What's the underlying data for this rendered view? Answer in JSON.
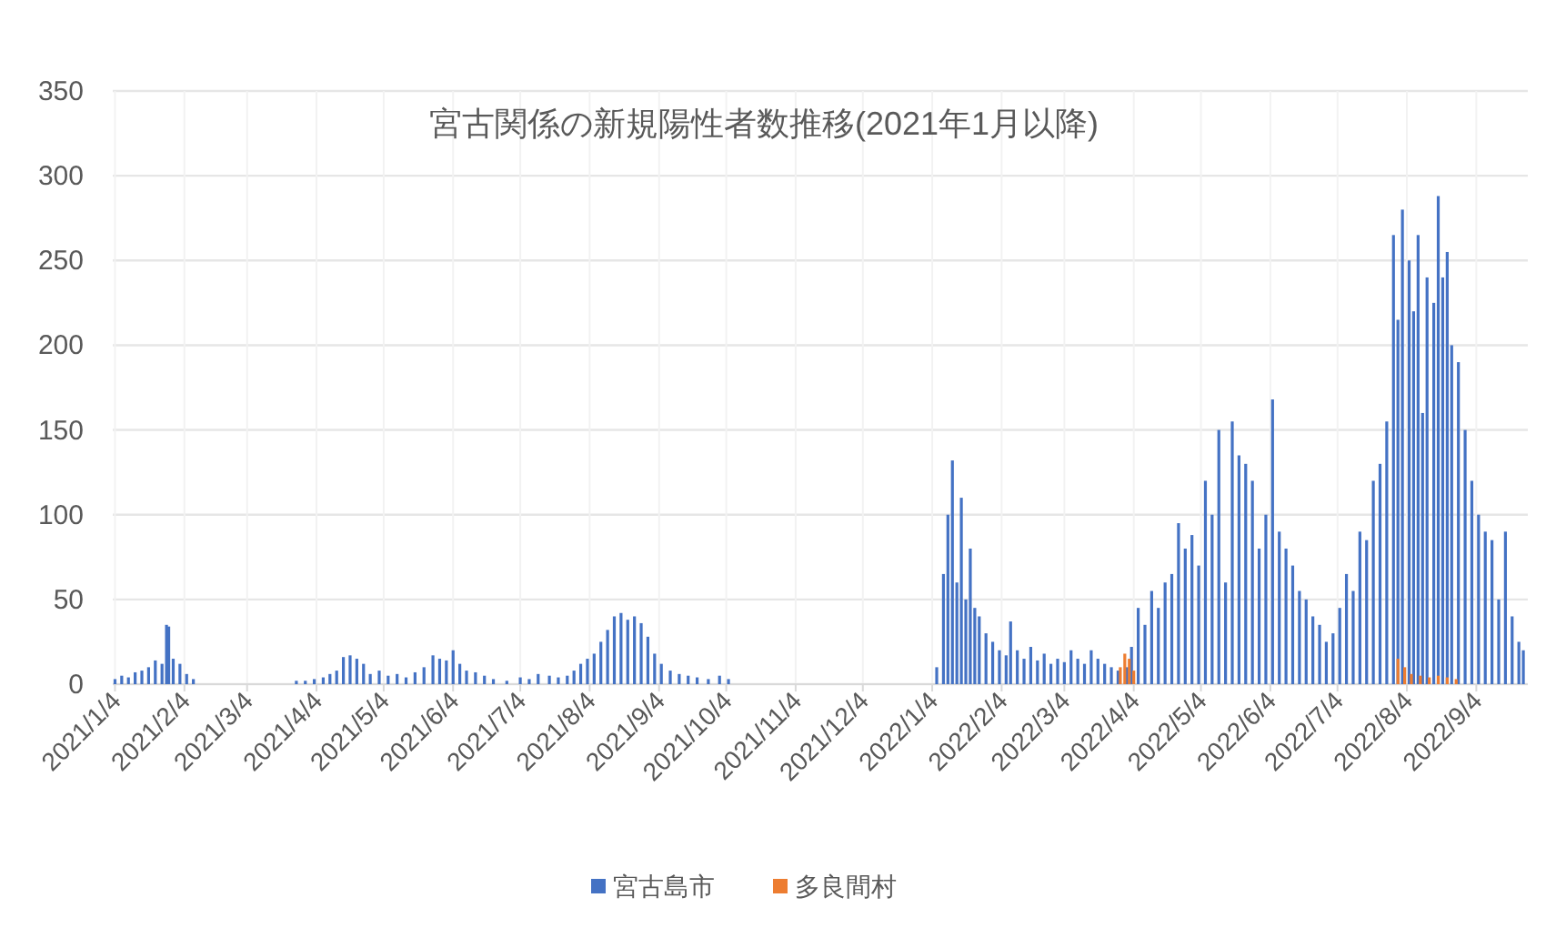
{
  "chart_data": {
    "type": "bar",
    "title": "宮古関係の新規陽性者数推移(2021年1月以降)",
    "xlim": [
      "2021-01-03",
      "2022-09-27"
    ],
    "xticks": [
      {
        "value": "2021-01-04",
        "label": "2021/1/4"
      },
      {
        "value": "2021-02-04",
        "label": "2021/2/4"
      },
      {
        "value": "2021-03-04",
        "label": "2021/3/4"
      },
      {
        "value": "2021-04-04",
        "label": "2021/4/4"
      },
      {
        "value": "2021-05-04",
        "label": "2021/5/4"
      },
      {
        "value": "2021-06-04",
        "label": "2021/6/4"
      },
      {
        "value": "2021-07-04",
        "label": "2021/7/4"
      },
      {
        "value": "2021-08-04",
        "label": "2021/8/4"
      },
      {
        "value": "2021-09-04",
        "label": "2021/9/4"
      },
      {
        "value": "2021-10-04",
        "label": "2021/10/4"
      },
      {
        "value": "2021-11-04",
        "label": "2021/11/4"
      },
      {
        "value": "2021-12-04",
        "label": "2021/12/4"
      },
      {
        "value": "2022-01-04",
        "label": "2022/1/4"
      },
      {
        "value": "2022-02-04",
        "label": "2022/2/4"
      },
      {
        "value": "2022-03-04",
        "label": "2022/3/4"
      },
      {
        "value": "2022-04-04",
        "label": "2022/4/4"
      },
      {
        "value": "2022-05-04",
        "label": "2022/5/4"
      },
      {
        "value": "2022-06-04",
        "label": "2022/6/4"
      },
      {
        "value": "2022-07-04",
        "label": "2022/7/4"
      },
      {
        "value": "2022-08-04",
        "label": "2022/8/4"
      },
      {
        "value": "2022-09-04",
        "label": "2022/9/4"
      }
    ],
    "ylim": [
      0,
      350
    ],
    "yticks": [
      0,
      50,
      100,
      150,
      200,
      250,
      300,
      350
    ],
    "grid": true,
    "legend": "bottom",
    "series": [
      {
        "name": "宮古島市",
        "color": "#4472c4",
        "x": [
          "2021-01-04",
          "2021-01-07",
          "2021-01-10",
          "2021-01-13",
          "2021-01-16",
          "2021-01-19",
          "2021-01-22",
          "2021-01-25",
          "2021-01-27",
          "2021-01-28",
          "2021-01-30",
          "2021-02-02",
          "2021-02-05",
          "2021-02-08",
          "2021-03-26",
          "2021-03-30",
          "2021-04-03",
          "2021-04-07",
          "2021-04-10",
          "2021-04-13",
          "2021-04-16",
          "2021-04-19",
          "2021-04-22",
          "2021-04-25",
          "2021-04-28",
          "2021-05-02",
          "2021-05-06",
          "2021-05-10",
          "2021-05-14",
          "2021-05-18",
          "2021-05-22",
          "2021-05-26",
          "2021-05-29",
          "2021-06-01",
          "2021-06-04",
          "2021-06-07",
          "2021-06-10",
          "2021-06-14",
          "2021-06-18",
          "2021-06-22",
          "2021-06-28",
          "2021-07-04",
          "2021-07-08",
          "2021-07-12",
          "2021-07-17",
          "2021-07-21",
          "2021-07-25",
          "2021-07-28",
          "2021-07-31",
          "2021-08-03",
          "2021-08-06",
          "2021-08-09",
          "2021-08-12",
          "2021-08-15",
          "2021-08-18",
          "2021-08-21",
          "2021-08-24",
          "2021-08-27",
          "2021-08-30",
          "2021-09-02",
          "2021-09-05",
          "2021-09-09",
          "2021-09-13",
          "2021-09-17",
          "2021-09-21",
          "2021-09-26",
          "2021-10-01",
          "2021-10-05",
          "2022-01-06",
          "2022-01-09",
          "2022-01-11",
          "2022-01-13",
          "2022-01-15",
          "2022-01-17",
          "2022-01-19",
          "2022-01-21",
          "2022-01-23",
          "2022-01-25",
          "2022-01-28",
          "2022-01-31",
          "2022-02-03",
          "2022-02-06",
          "2022-02-08",
          "2022-02-11",
          "2022-02-14",
          "2022-02-17",
          "2022-02-20",
          "2022-02-23",
          "2022-02-26",
          "2022-03-01",
          "2022-03-04",
          "2022-03-07",
          "2022-03-10",
          "2022-03-13",
          "2022-03-16",
          "2022-03-19",
          "2022-03-22",
          "2022-03-25",
          "2022-03-28",
          "2022-04-01",
          "2022-04-03",
          "2022-04-06",
          "2022-04-09",
          "2022-04-12",
          "2022-04-15",
          "2022-04-18",
          "2022-04-21",
          "2022-04-24",
          "2022-04-27",
          "2022-04-30",
          "2022-05-03",
          "2022-05-06",
          "2022-05-09",
          "2022-05-12",
          "2022-05-15",
          "2022-05-18",
          "2022-05-21",
          "2022-05-24",
          "2022-05-27",
          "2022-05-30",
          "2022-06-02",
          "2022-06-05",
          "2022-06-08",
          "2022-06-11",
          "2022-06-14",
          "2022-06-17",
          "2022-06-20",
          "2022-06-23",
          "2022-06-26",
          "2022-06-29",
          "2022-07-02",
          "2022-07-05",
          "2022-07-08",
          "2022-07-11",
          "2022-07-14",
          "2022-07-17",
          "2022-07-20",
          "2022-07-23",
          "2022-07-26",
          "2022-07-29",
          "2022-07-31",
          "2022-08-02",
          "2022-08-05",
          "2022-08-07",
          "2022-08-09",
          "2022-08-11",
          "2022-08-13",
          "2022-08-16",
          "2022-08-18",
          "2022-08-20",
          "2022-08-22",
          "2022-08-24",
          "2022-08-27",
          "2022-08-30",
          "2022-09-02",
          "2022-09-05",
          "2022-09-08",
          "2022-09-11",
          "2022-09-14",
          "2022-09-17",
          "2022-09-20",
          "2022-09-23",
          "2022-09-25"
        ],
        "values": [
          3,
          5,
          4,
          7,
          8,
          10,
          14,
          12,
          35,
          34,
          15,
          12,
          6,
          3,
          2,
          2,
          3,
          4,
          6,
          8,
          16,
          17,
          15,
          12,
          6,
          8,
          5,
          6,
          4,
          7,
          10,
          17,
          15,
          14,
          20,
          12,
          8,
          7,
          5,
          3,
          2,
          4,
          3,
          6,
          5,
          4,
          5,
          8,
          12,
          15,
          18,
          25,
          32,
          40,
          42,
          38,
          40,
          36,
          28,
          18,
          12,
          8,
          6,
          5,
          4,
          3,
          5,
          3,
          10,
          65,
          100,
          132,
          60,
          110,
          50,
          80,
          45,
          40,
          30,
          25,
          20,
          17,
          37,
          20,
          15,
          22,
          14,
          18,
          12,
          15,
          13,
          20,
          15,
          12,
          20,
          15,
          12,
          10,
          8,
          10,
          22,
          45,
          35,
          55,
          45,
          60,
          65,
          95,
          80,
          88,
          70,
          120,
          100,
          150,
          60,
          155,
          135,
          130,
          120,
          80,
          100,
          168,
          90,
          80,
          70,
          55,
          50,
          40,
          35,
          25,
          30,
          45,
          65,
          55,
          90,
          85,
          120,
          130,
          155,
          265,
          215,
          280,
          250,
          220,
          265,
          160,
          240,
          225,
          288,
          240,
          255,
          200,
          190,
          150,
          120,
          100,
          90,
          85,
          50,
          90,
          40,
          25,
          20
        ]
      },
      {
        "name": "多良間村",
        "color": "#ed7d31",
        "x": [
          "2022-03-29",
          "2022-03-31",
          "2022-04-02",
          "2022-04-04",
          "2022-07-31",
          "2022-08-03",
          "2022-08-06",
          "2022-08-10",
          "2022-08-14",
          "2022-08-18",
          "2022-08-22",
          "2022-08-26"
        ],
        "values": [
          10,
          18,
          15,
          8,
          15,
          10,
          6,
          5,
          4,
          5,
          4,
          3
        ]
      }
    ]
  }
}
